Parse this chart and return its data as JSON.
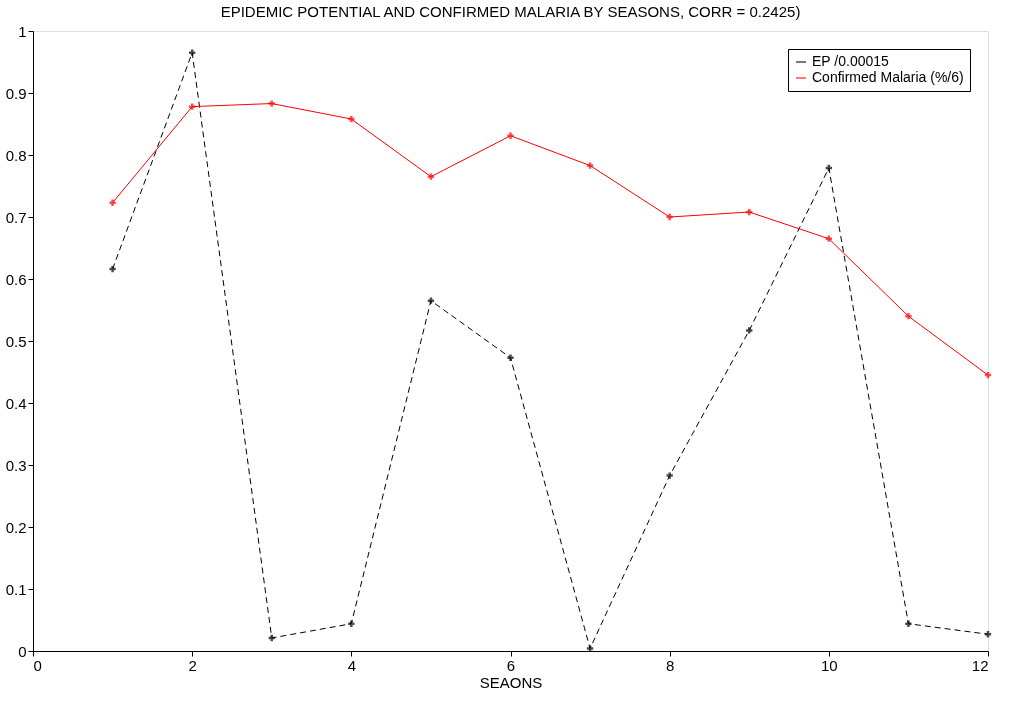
{
  "chart_data": {
    "type": "line",
    "title": "EPIDEMIC POTENTIAL AND CONFIRMED MALARIA BY SEASONS, CORR = 0.2425)",
    "xlabel": "SEAONS",
    "x": [
      1,
      2,
      3,
      4,
      5,
      6,
      7,
      8,
      9,
      10,
      11,
      12
    ],
    "series": [
      {
        "name": "EP /0.00015",
        "color": "#000000",
        "line_style": "dashed",
        "values": [
          0.616,
          0.965,
          0.021,
          0.044,
          0.565,
          0.473,
          0.004,
          0.283,
          0.517,
          0.779,
          0.044,
          0.027
        ]
      },
      {
        "name": "Confirmed Malaria (%/6)",
        "color": "#ff0000",
        "line_style": "solid",
        "values": [
          0.723,
          0.878,
          0.883,
          0.858,
          0.765,
          0.831,
          0.783,
          0.7,
          0.708,
          0.665,
          0.54,
          0.445
        ]
      }
    ],
    "xlim": [
      0,
      12
    ],
    "xticks": [
      0,
      2,
      4,
      6,
      8,
      10,
      12
    ],
    "ylim": [
      0,
      1
    ],
    "yticks": [
      0,
      0.1,
      0.2,
      0.3,
      0.4,
      0.5,
      0.6,
      0.7,
      0.8,
      0.9,
      1
    ],
    "grid": false,
    "legend": "top right",
    "marker": "cross"
  }
}
